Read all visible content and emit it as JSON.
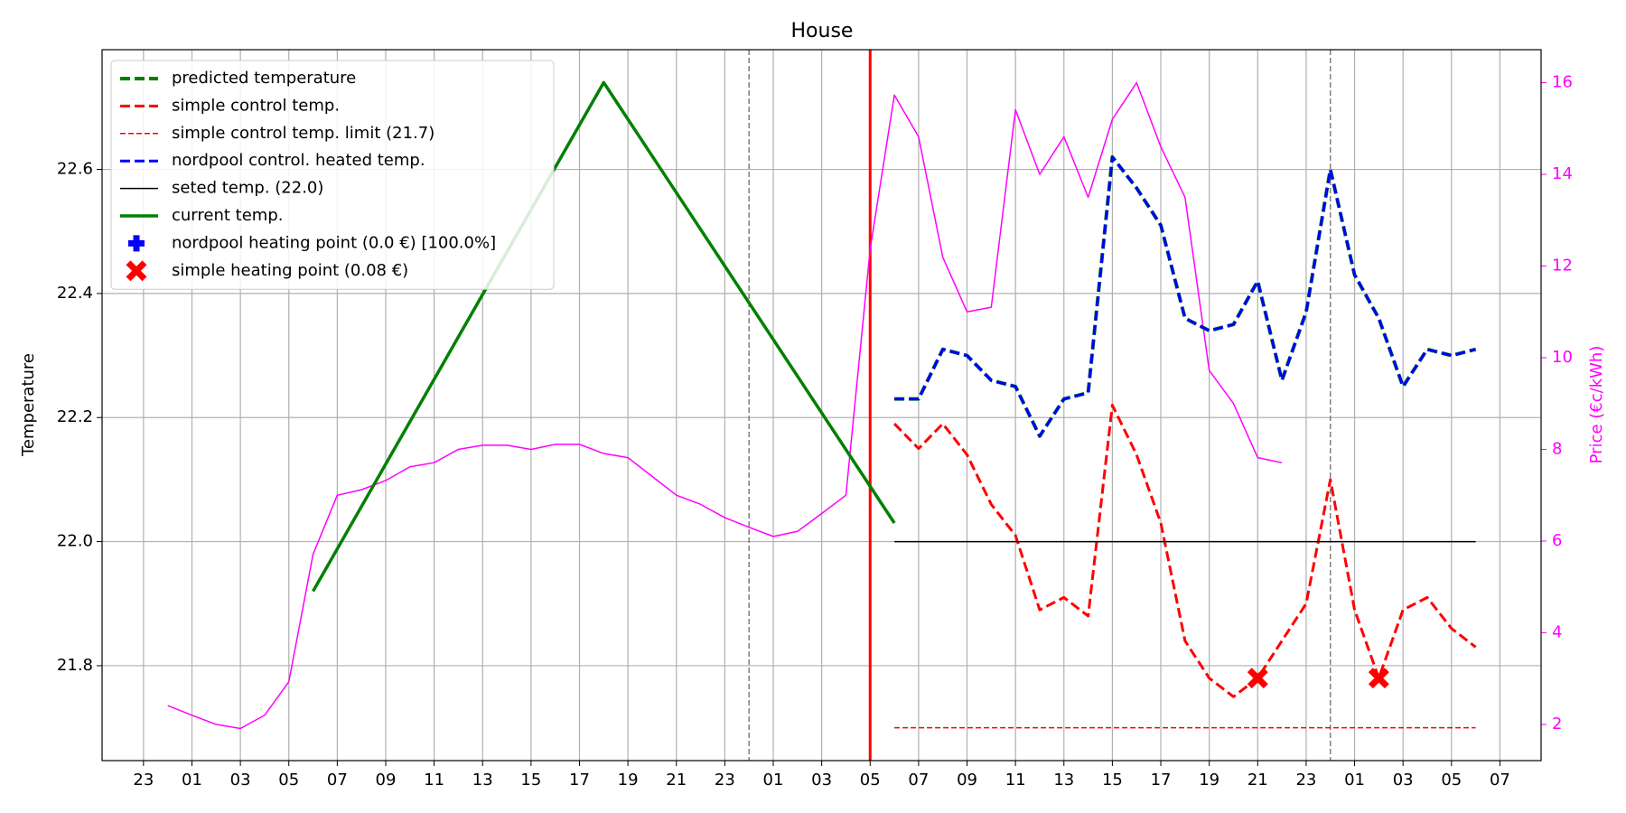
{
  "chart_data": {
    "type": "line",
    "title": "House",
    "ylabel": "Temperature",
    "y2label": "Price (€c/kWh)",
    "xlim": [
      -1.71,
      57.7
    ],
    "xticks": [
      {
        "value": 0,
        "label": "23"
      },
      {
        "value": 2,
        "label": "01"
      },
      {
        "value": 4,
        "label": "03"
      },
      {
        "value": 6,
        "label": "05"
      },
      {
        "value": 8,
        "label": "07"
      },
      {
        "value": 10,
        "label": "09"
      },
      {
        "value": 12,
        "label": "11"
      },
      {
        "value": 14,
        "label": "13"
      },
      {
        "value": 16,
        "label": "15"
      },
      {
        "value": 18,
        "label": "17"
      },
      {
        "value": 20,
        "label": "19"
      },
      {
        "value": 22,
        "label": "21"
      },
      {
        "value": 24,
        "label": "23"
      },
      {
        "value": 26,
        "label": "01"
      },
      {
        "value": 28,
        "label": "03"
      },
      {
        "value": 30,
        "label": "05"
      },
      {
        "value": 32,
        "label": "07"
      },
      {
        "value": 34,
        "label": "09"
      },
      {
        "value": 36,
        "label": "11"
      },
      {
        "value": 38,
        "label": "13"
      },
      {
        "value": 40,
        "label": "15"
      },
      {
        "value": 42,
        "label": "17"
      },
      {
        "value": 44,
        "label": "19"
      },
      {
        "value": 46,
        "label": "21"
      },
      {
        "value": 48,
        "label": "23"
      },
      {
        "value": 50,
        "label": "01"
      },
      {
        "value": 52,
        "label": "03"
      },
      {
        "value": 54,
        "label": "05"
      },
      {
        "value": 56,
        "label": "07"
      }
    ],
    "ylim": [
      21.647,
      22.793
    ],
    "yticks": [
      {
        "value": 21.8,
        "label": "21.8"
      },
      {
        "value": 22.0,
        "label": "22.0"
      },
      {
        "value": 22.2,
        "label": "22.2"
      },
      {
        "value": 22.4,
        "label": "22.4"
      },
      {
        "value": 22.6,
        "label": "22.6"
      }
    ],
    "y2lim": [
      1.21,
      16.72
    ],
    "y2ticks": [
      2,
      4,
      6,
      8,
      10,
      12,
      14,
      16
    ],
    "grid": true,
    "legend": "upper left",
    "vlines": [
      {
        "x": 25,
        "color": "#808080",
        "style": "dashed"
      },
      {
        "x": 49,
        "color": "#808080",
        "style": "dashed"
      },
      {
        "x": 30,
        "color": "#ff0000",
        "style": "solid"
      }
    ],
    "series": [
      {
        "name": "predicted temperature",
        "color": "#008000",
        "style": "dashed",
        "width": 4,
        "x": [
          31,
          32,
          33,
          34,
          35,
          36,
          37,
          38,
          39,
          40,
          41,
          42,
          43,
          44,
          45,
          46,
          47,
          48,
          49,
          50,
          51,
          52,
          53,
          54,
          55
        ],
        "values": [
          22.23,
          22.23,
          22.31,
          22.3,
          22.26,
          22.25,
          22.17,
          22.23,
          22.24,
          22.62,
          22.57,
          22.51,
          22.36,
          22.34,
          22.35,
          22.42,
          22.26,
          22.37,
          22.6,
          22.43,
          22.36,
          22.25,
          22.31,
          22.3,
          22.31
        ]
      },
      {
        "name": "simple control temp.",
        "color": "#ff0000",
        "style": "dashed",
        "width": 3,
        "x": [
          31,
          32,
          33,
          34,
          35,
          36,
          37,
          38,
          39,
          40,
          41,
          42,
          43,
          44,
          45,
          46,
          47,
          48,
          49,
          50,
          51,
          52,
          53,
          54,
          55
        ],
        "values": [
          22.19,
          22.15,
          22.19,
          22.14,
          22.06,
          22.01,
          21.89,
          21.91,
          21.88,
          22.22,
          22.14,
          22.03,
          21.84,
          21.78,
          21.75,
          21.78,
          21.84,
          21.9,
          22.1,
          21.89,
          21.78,
          21.89,
          21.91,
          21.86,
          21.83
        ]
      },
      {
        "name": "simple control temp. limit (21.7)",
        "color": "#ff0000",
        "style": "thin-dashed",
        "width": 1.5,
        "x": [
          31,
          55
        ],
        "values": [
          21.7,
          21.7
        ]
      },
      {
        "name": "nordpool control. heated temp.",
        "color": "#0000ff",
        "style": "dashed",
        "width": 3,
        "x": [
          31,
          32,
          33,
          34,
          35,
          36,
          37,
          38,
          39,
          40,
          41,
          42,
          43,
          44,
          45,
          46,
          47,
          48,
          49,
          50,
          51,
          52,
          53,
          54,
          55
        ],
        "values": [
          22.23,
          22.23,
          22.31,
          22.3,
          22.26,
          22.25,
          22.17,
          22.23,
          22.24,
          22.62,
          22.57,
          22.51,
          22.36,
          22.34,
          22.35,
          22.42,
          22.26,
          22.37,
          22.6,
          22.43,
          22.36,
          22.25,
          22.31,
          22.3,
          22.31
        ]
      },
      {
        "name": "seted temp. (22.0)",
        "color": "#000000",
        "style": "solid",
        "width": 1.5,
        "x": [
          31,
          55
        ],
        "values": [
          22.0,
          22.0
        ]
      },
      {
        "name": "current temp.",
        "color": "#008000",
        "style": "solid",
        "width": 3.5,
        "x": [
          7,
          19,
          31
        ],
        "values": [
          21.92,
          22.74,
          22.03
        ]
      },
      {
        "name": "nordpool heating point (0.0 €) [100.0%]",
        "color": "#0000ff",
        "marker": "plus",
        "x": [],
        "values": []
      },
      {
        "name": "simple heating point (0.08 €)",
        "color": "#ff0000",
        "marker": "x",
        "x": [
          46,
          51
        ],
        "values": [
          21.78,
          21.78
        ]
      },
      {
        "color": "#ff00ff",
        "style": "solid",
        "width": 1.5,
        "axis": "y2",
        "x": [
          1,
          2,
          3,
          4,
          5,
          6,
          7,
          8,
          9,
          10,
          11,
          12,
          13,
          14,
          15,
          16,
          17,
          18,
          19,
          20,
          21,
          22,
          23,
          24,
          25,
          26,
          27,
          28,
          29,
          30,
          31,
          32,
          33,
          34,
          35,
          36,
          37,
          38,
          39,
          40,
          41,
          42,
          43,
          44,
          45,
          46,
          47
        ],
        "values": [
          2.41,
          2.2,
          2.0,
          1.91,
          2.2,
          2.93,
          5.71,
          7.0,
          7.12,
          7.32,
          7.62,
          7.71,
          8.0,
          8.09,
          8.09,
          8.0,
          8.11,
          8.11,
          7.91,
          7.82,
          7.41,
          7.0,
          6.8,
          6.51,
          6.3,
          6.1,
          6.21,
          6.6,
          7.0,
          12.37,
          15.73,
          14.82,
          12.19,
          11.0,
          11.1,
          15.41,
          14.0,
          14.82,
          13.5,
          15.2,
          16.0,
          14.6,
          13.5,
          9.72,
          9.0,
          7.82,
          7.71
        ]
      }
    ]
  }
}
